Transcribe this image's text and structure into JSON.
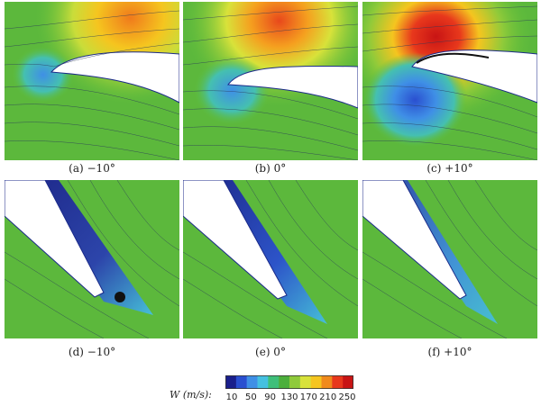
{
  "panels": [
    {
      "id": "a",
      "caption": "(a) −10°"
    },
    {
      "id": "b",
      "caption": "(b) 0°"
    },
    {
      "id": "c",
      "caption": "(c) +10°"
    },
    {
      "id": "d",
      "caption": "(d) −10°"
    },
    {
      "id": "e",
      "caption": "(e) 0°"
    },
    {
      "id": "f",
      "caption": "(f) +10°"
    }
  ],
  "colorbar": {
    "label_symbol": "W",
    "label_unit": "(m/s):",
    "ticks": [
      "10",
      "50",
      "90",
      "130",
      "170",
      "210",
      "250"
    ],
    "colors": [
      "#1a1f8c",
      "#2a4fd0",
      "#3f8fe6",
      "#45c0e0",
      "#3fbf7a",
      "#4caf3c",
      "#8fca3a",
      "#d8e23a",
      "#f5c51f",
      "#f08a1c",
      "#e8381c",
      "#c81414"
    ]
  }
}
